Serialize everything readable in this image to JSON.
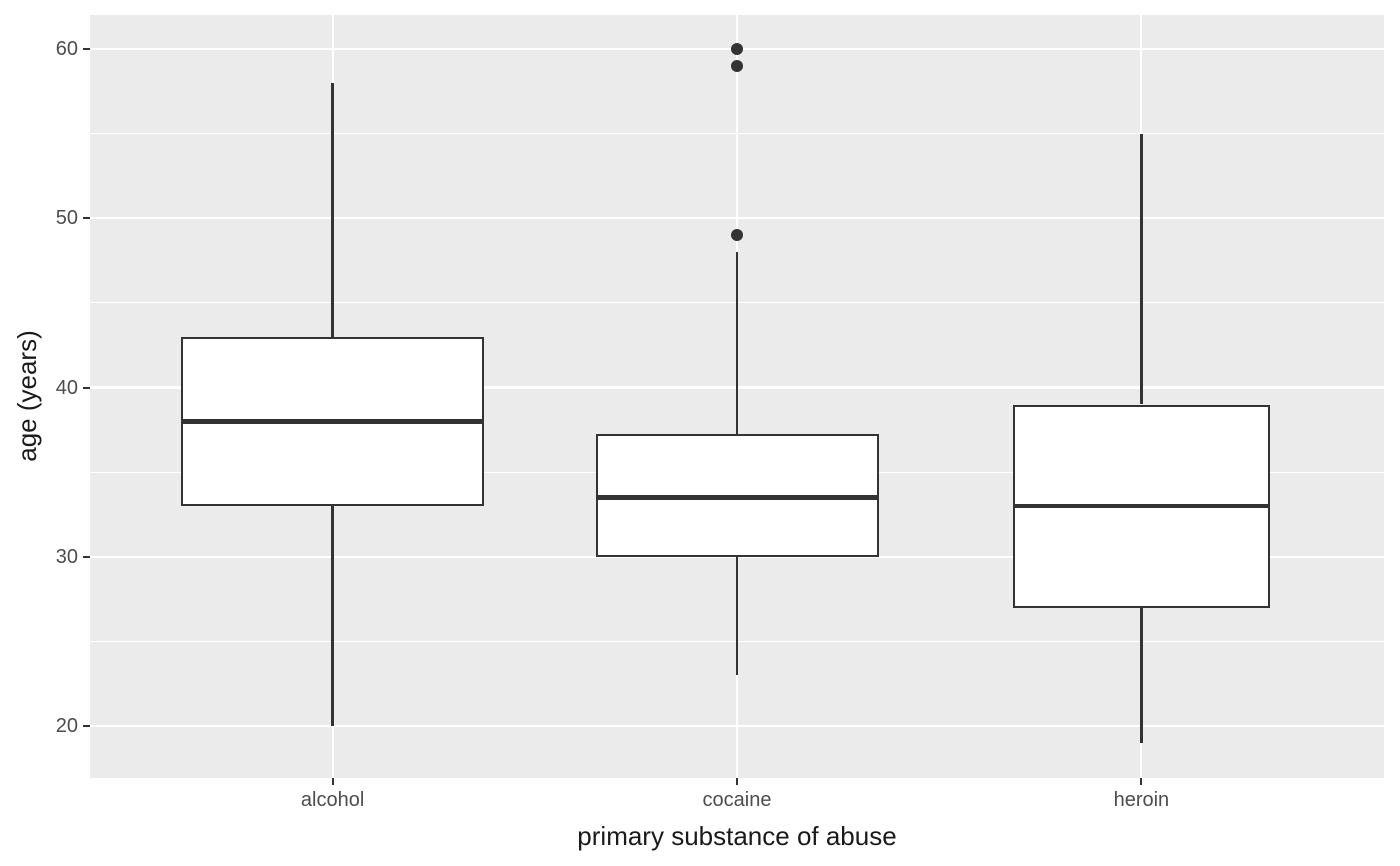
{
  "chart_data": {
    "type": "boxplot",
    "xlabel": "primary substance of abuse",
    "ylabel": "age (years)",
    "categories": [
      "alcohol",
      "cocaine",
      "heroin"
    ],
    "series": [
      {
        "category": "alcohol",
        "whisker_low": 20,
        "q1": 33,
        "median": 38,
        "q3": 43,
        "whisker_high": 58,
        "outliers": [],
        "box_width_units": 0.75
      },
      {
        "category": "cocaine",
        "whisker_low": 23,
        "q1": 30,
        "median": 33.5,
        "q3": 37.25,
        "whisker_high": 48,
        "outliers": [
          49,
          59,
          60
        ],
        "box_width_units": 0.7
      },
      {
        "category": "heroin",
        "whisker_low": 19,
        "q1": 27,
        "median": 33,
        "q3": 39,
        "whisker_high": 55,
        "outliers": [],
        "box_width_units": 0.635
      }
    ],
    "x_positions": [
      1,
      2,
      3
    ],
    "xlim": [
      0.4,
      3.6
    ],
    "y_major_ticks": [
      20,
      30,
      40,
      50,
      60
    ],
    "y_minor_ticks": [
      25,
      35,
      45,
      55
    ],
    "ylim": [
      16.95,
      62.05
    ],
    "grid": true,
    "legend": "none",
    "theme": {
      "panel_bg": "#EBEBEB",
      "grid_color": "#FFFFFF",
      "box_stroke": "#333333",
      "box_fill": "#FFFFFF",
      "outlier_color": "#333333",
      "tick_mark_color": "#333333",
      "tick_label_color": "#4D4D4D",
      "axis_title_color": "#1A1A1A",
      "outer_bg": "#FFFFFF"
    }
  }
}
